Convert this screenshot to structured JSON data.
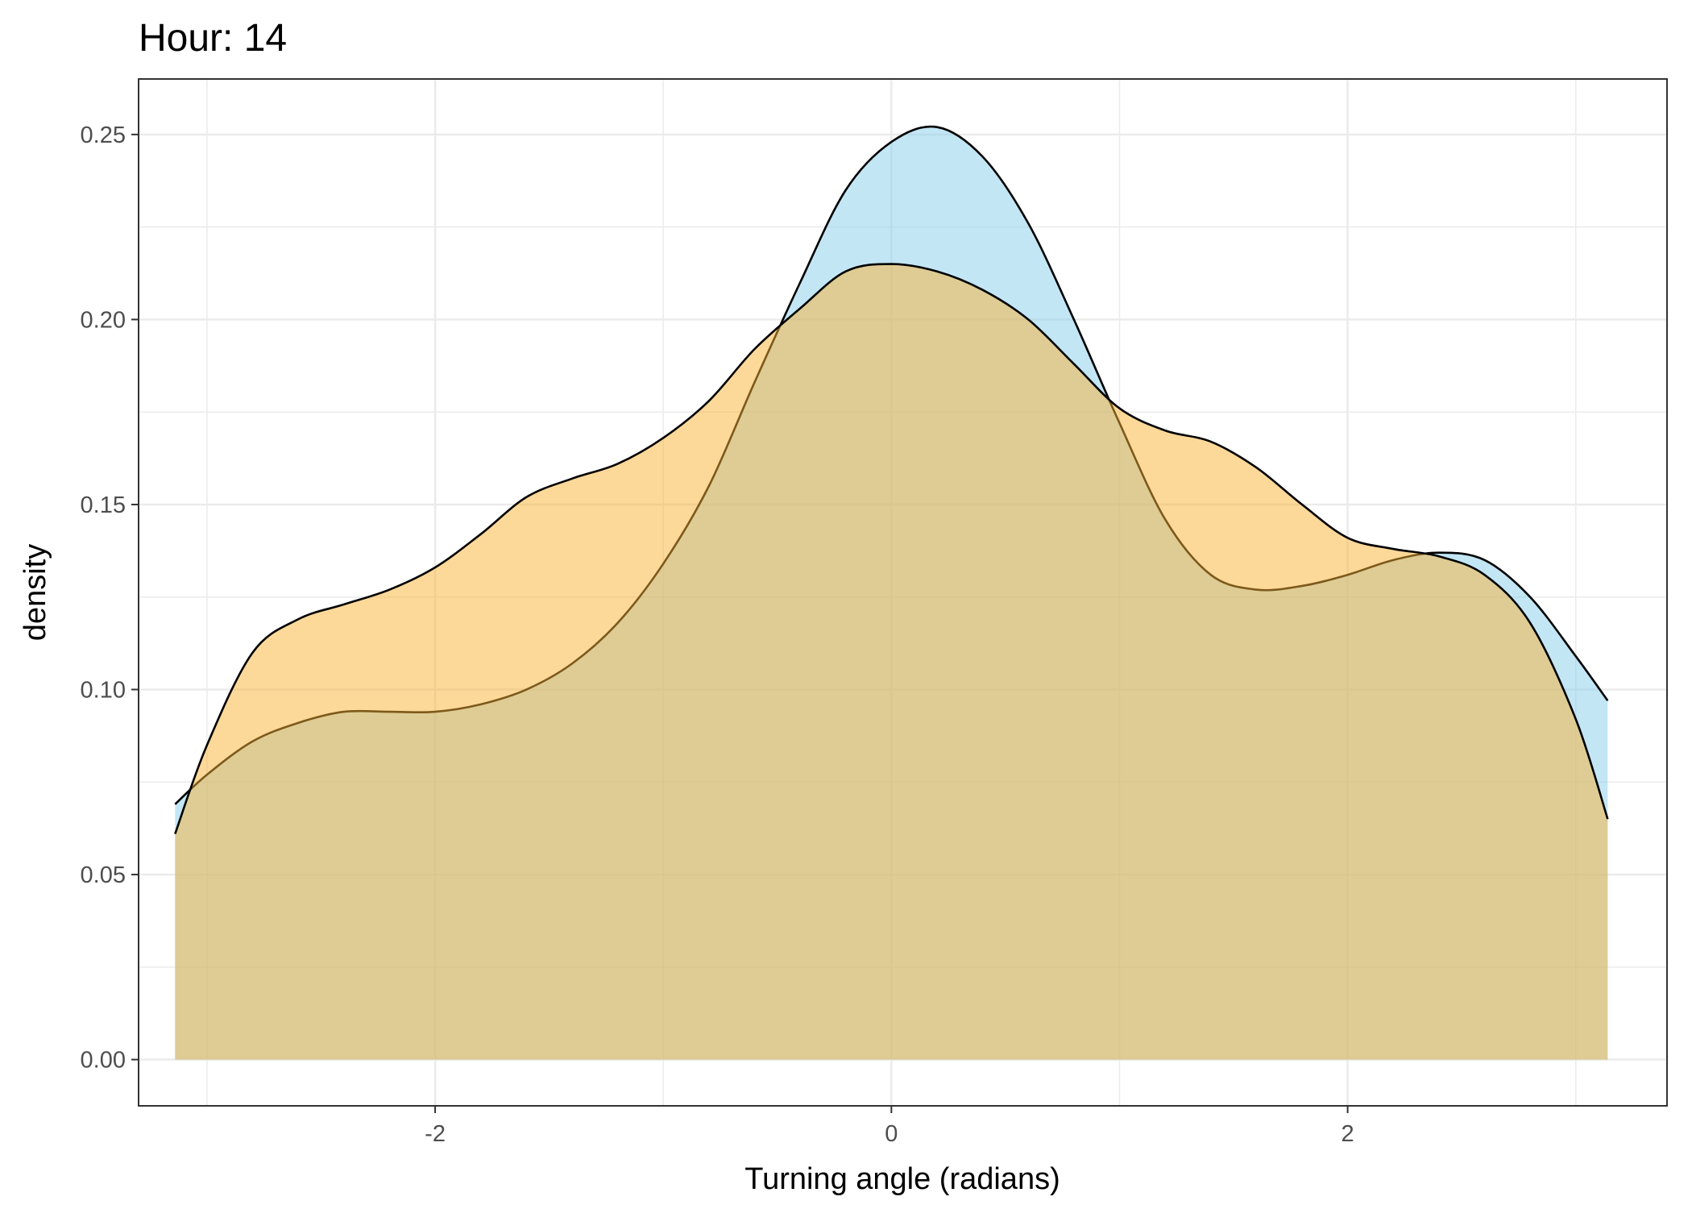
{
  "chart_data": {
    "type": "area",
    "title": "Hour: 14",
    "xlabel": "Turning angle (radians)",
    "ylabel": "density",
    "xlim": [
      -3.3,
      3.4
    ],
    "ylim": [
      -0.0125,
      0.265
    ],
    "x_ticks": [
      -2,
      0,
      2
    ],
    "x_tick_labels": [
      "-2",
      "0",
      "2"
    ],
    "x_minor_gridlines": [
      -3,
      -1,
      1,
      3
    ],
    "y_ticks": [
      0,
      0.05,
      0.1,
      0.15,
      0.2,
      0.25
    ],
    "y_tick_labels": [
      "0.00",
      "0.05",
      "0.10",
      "0.15",
      "0.20",
      "0.25"
    ],
    "y_minor_gridlines": [
      0.025,
      0.075,
      0.125,
      0.175,
      0.225
    ],
    "grid": true,
    "legend": "none",
    "series": [
      {
        "color": "#87CEEB",
        "x": [
          -3.14,
          -3.0,
          -2.8,
          -2.6,
          -2.4,
          -2.2,
          -2.0,
          -1.8,
          -1.6,
          -1.4,
          -1.2,
          -1.0,
          -0.8,
          -0.6,
          -0.4,
          -0.2,
          0.0,
          0.2,
          0.4,
          0.6,
          0.8,
          1.0,
          1.2,
          1.4,
          1.6,
          1.8,
          2.0,
          2.2,
          2.4,
          2.6,
          2.8,
          3.0,
          3.14
        ],
        "values": [
          0.069,
          0.077,
          0.086,
          0.091,
          0.094,
          0.094,
          0.094,
          0.096,
          0.1,
          0.107,
          0.118,
          0.134,
          0.155,
          0.183,
          0.21,
          0.235,
          0.248,
          0.252,
          0.244,
          0.226,
          0.2,
          0.172,
          0.146,
          0.131,
          0.127,
          0.128,
          0.131,
          0.135,
          0.137,
          0.135,
          0.125,
          0.109,
          0.097
        ]
      },
      {
        "color": "#F9B233",
        "x": [
          -3.14,
          -3.0,
          -2.8,
          -2.6,
          -2.4,
          -2.2,
          -2.0,
          -1.8,
          -1.6,
          -1.4,
          -1.2,
          -1.0,
          -0.8,
          -0.6,
          -0.4,
          -0.2,
          0.0,
          0.2,
          0.4,
          0.6,
          0.8,
          1.0,
          1.2,
          1.4,
          1.6,
          1.8,
          2.0,
          2.2,
          2.4,
          2.6,
          2.8,
          3.0,
          3.14
        ],
        "values": [
          0.061,
          0.085,
          0.11,
          0.119,
          0.123,
          0.127,
          0.133,
          0.142,
          0.152,
          0.157,
          0.161,
          0.168,
          0.178,
          0.192,
          0.203,
          0.213,
          0.215,
          0.213,
          0.208,
          0.2,
          0.188,
          0.176,
          0.17,
          0.167,
          0.16,
          0.15,
          0.141,
          0.138,
          0.136,
          0.131,
          0.118,
          0.092,
          0.065
        ]
      }
    ]
  }
}
